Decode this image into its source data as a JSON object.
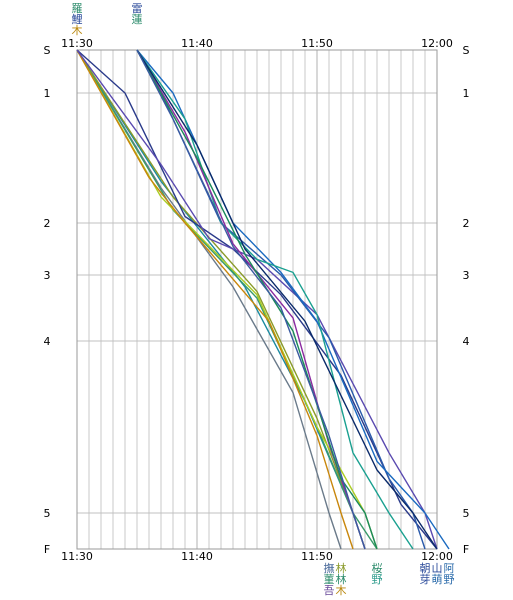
{
  "chart_data": {
    "type": "line",
    "title": "",
    "xlabel": "",
    "ylabel": "",
    "x_ticks": [
      "11:30",
      "11:40",
      "11:50",
      "12:00"
    ],
    "xlim": [
      "11:30",
      "12:00"
    ],
    "x_minor_step_minutes": 1,
    "y_ticks": [
      "S",
      "1",
      "2",
      "3",
      "4",
      "5",
      "F"
    ],
    "y_scale": "by-distance",
    "grid": true,
    "top_markers": [
      {
        "x": "11:30",
        "labels": [
          "羅",
          "鯉",
          "木"
        ],
        "colors": [
          "#2a8a6a",
          "#2a4a9a",
          "#b8860b"
        ]
      },
      {
        "x": "11:35",
        "labels": [
          "雷",
          "蓮"
        ],
        "colors": [
          "#2a4a9a",
          "#2a8a6a"
        ]
      }
    ],
    "bottom_markers": [
      {
        "x": "11:51",
        "labels": [
          "撫",
          "菫",
          "吾"
        ],
        "colors": [
          "#4a6a9a",
          "#2a8a6a",
          "#6a4a9a"
        ]
      },
      {
        "x": "11:52",
        "labels": [
          "林",
          "林",
          "木"
        ],
        "colors": [
          "#8a9a2a",
          "#2a8a6a",
          "#b8860b"
        ]
      },
      {
        "x": "11:55",
        "labels": [
          "桜",
          "野"
        ],
        "colors": [
          "#2a8a6a",
          "#2a9a8a"
        ]
      },
      {
        "x": "11:59",
        "labels": [
          "朝",
          "芽"
        ],
        "colors": [
          "#2a4a9a",
          "#2a4a9a"
        ]
      },
      {
        "x": "12:00",
        "labels": [
          "山",
          "萌"
        ],
        "colors": [
          "#2a4a9a",
          "#2a6aaa"
        ]
      },
      {
        "x": "12:01",
        "labels": [
          "阿",
          "野"
        ],
        "colors": [
          "#2a6aaa",
          "#2a6aaa"
        ]
      }
    ],
    "series": [
      {
        "color": "#6a7a8a",
        "points": [
          [
            "11:30",
            "S"
          ],
          [
            "11:37",
            "1.73"
          ],
          [
            "11:43",
            "3.18"
          ],
          [
            "11:48",
            "4.30"
          ],
          [
            "11:51",
            "5.00"
          ],
          [
            "11:52",
            "F"
          ]
        ]
      },
      {
        "color": "#1a8aa0",
        "points": [
          [
            "11:30",
            "S"
          ],
          [
            "11:37",
            "1.68"
          ],
          [
            "11:44",
            "3.18"
          ],
          [
            "11:49",
            "4.35"
          ],
          [
            "11:53",
            "5.00"
          ],
          [
            "11:54",
            "F"
          ]
        ]
      },
      {
        "color": "#8a9a2a",
        "points": [
          [
            "11:30",
            "S"
          ],
          [
            "11:38",
            "1.80"
          ],
          [
            "11:45",
            "3.25"
          ],
          [
            "11:50",
            "4.45"
          ],
          [
            "11:53",
            "5.00"
          ],
          [
            "11:54",
            "F"
          ]
        ]
      },
      {
        "color": "#3a9a6a",
        "points": [
          [
            "11:30",
            "S"
          ],
          [
            "11:38",
            "1.90"
          ],
          [
            "11:45",
            "3.35"
          ],
          [
            "11:50",
            "4.50"
          ],
          [
            "11:53",
            "5.00"
          ],
          [
            "11:55",
            "F"
          ]
        ]
      },
      {
        "color": "#aacc22",
        "points": [
          [
            "11:30",
            "S"
          ],
          [
            "11:37",
            "1.80"
          ],
          [
            "11:45",
            "3.30"
          ],
          [
            "11:50",
            "4.50"
          ],
          [
            "11:54",
            "5.00"
          ],
          [
            "11:55",
            "F"
          ]
        ]
      },
      {
        "color": "#c8860b",
        "points": [
          [
            "11:30",
            "S"
          ],
          [
            "11:36",
            "1.65"
          ],
          [
            "11:39",
            "2.00"
          ],
          [
            "11:46",
            "3.70"
          ],
          [
            "11:50",
            "4.55"
          ],
          [
            "11:52",
            "5.00"
          ],
          [
            "11:53",
            "F"
          ]
        ]
      },
      {
        "color": "#2a3a8a",
        "points": [
          [
            "11:30",
            "S"
          ],
          [
            "11:34",
            "1.00"
          ],
          [
            "11:39",
            "1.95"
          ],
          [
            "11:43",
            "2.50"
          ],
          [
            "11:47",
            "3.30"
          ],
          [
            "11:52",
            "4.20"
          ],
          [
            "11:57",
            "4.95"
          ],
          [
            "12:00",
            "F"
          ]
        ]
      },
      {
        "color": "#5a4ab0",
        "points": [
          [
            "11:30",
            "S"
          ],
          [
            "11:37",
            "1.55"
          ],
          [
            "11:41",
            "2.30"
          ],
          [
            "11:45",
            "2.70"
          ],
          [
            "11:50",
            "3.60"
          ],
          [
            "11:56",
            "4.65"
          ],
          [
            "11:59",
            "5.00"
          ],
          [
            "12:00",
            "F"
          ]
        ]
      },
      {
        "color": "#2a5aaa",
        "points": [
          [
            "11:35",
            "S"
          ],
          [
            "11:37",
            "1.00"
          ],
          [
            "11:42",
            "2.00"
          ],
          [
            "11:47",
            "3.00"
          ],
          [
            "11:51",
            "3.95"
          ],
          [
            "11:56",
            "4.80"
          ],
          [
            "11:58",
            "5.00"
          ],
          [
            "11:59",
            "F"
          ]
        ]
      },
      {
        "color": "#1a6ac0",
        "points": [
          [
            "11:35",
            "S"
          ],
          [
            "11:38",
            "1.00"
          ],
          [
            "11:43",
            "2.00"
          ],
          [
            "11:47",
            "2.95"
          ],
          [
            "11:50",
            "3.70"
          ],
          [
            "11:55",
            "4.70"
          ],
          [
            "11:59",
            "5.00"
          ],
          [
            "12:01",
            "F"
          ]
        ]
      },
      {
        "color": "#1aa090",
        "points": [
          [
            "11:35",
            "S"
          ],
          [
            "11:39",
            "1.20"
          ],
          [
            "11:42",
            "2.00"
          ],
          [
            "11:45",
            "2.70"
          ],
          [
            "11:48",
            "2.95"
          ],
          [
            "11:50",
            "3.60"
          ],
          [
            "11:53",
            "4.65"
          ],
          [
            "11:56",
            "5.00"
          ],
          [
            "11:58",
            "F"
          ]
        ]
      },
      {
        "color": "#8a2aa0",
        "points": [
          [
            "11:35",
            "S"
          ],
          [
            "11:39",
            "1.30"
          ],
          [
            "11:43",
            "2.40"
          ],
          [
            "11:48",
            "3.65"
          ],
          [
            "11:51",
            "4.60"
          ],
          [
            "11:53",
            "5.00"
          ],
          [
            "11:54",
            "F"
          ]
        ]
      },
      {
        "color": "#1a8a5a",
        "points": [
          [
            "11:35",
            "S"
          ],
          [
            "11:40",
            "1.50"
          ],
          [
            "11:44",
            "2.60"
          ],
          [
            "11:48",
            "3.85"
          ],
          [
            "11:52",
            "4.80"
          ],
          [
            "11:54",
            "5.00"
          ],
          [
            "11:55",
            "F"
          ]
        ]
      },
      {
        "color": "#0a2a6a",
        "points": [
          [
            "11:35",
            "S"
          ],
          [
            "11:40",
            "1.40"
          ],
          [
            "11:44",
            "2.50"
          ],
          [
            "11:49",
            "3.70"
          ],
          [
            "11:55",
            "4.75"
          ],
          [
            "11:58",
            "5.00"
          ],
          [
            "12:00",
            "F"
          ]
        ]
      },
      {
        "color": "#3a5aa0",
        "points": [
          [
            "11:35",
            "S"
          ],
          [
            "11:38",
            "1.20"
          ],
          [
            "11:43",
            "2.45"
          ],
          [
            "11:47",
            "3.50"
          ],
          [
            "11:51",
            "4.55"
          ],
          [
            "11:53",
            "5.00"
          ],
          [
            "11:54",
            "F"
          ]
        ]
      }
    ]
  }
}
